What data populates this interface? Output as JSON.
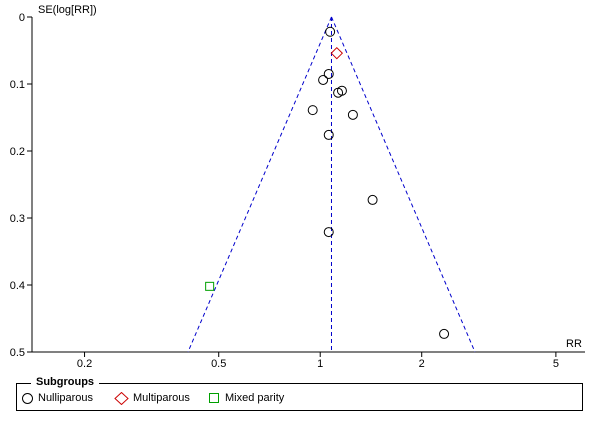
{
  "chart_data": {
    "type": "scatter",
    "title": "",
    "xlabel": "RR",
    "ylabel": "SE(log[RR])",
    "x_scale": "log",
    "xlim": [
      0.1397,
      6.1
    ],
    "x_ticks": [
      0.2,
      0.5,
      1,
      2,
      5
    ],
    "x_tick_labels": [
      "0.2",
      "0.5",
      "1",
      "2",
      "5"
    ],
    "ylim": [
      0,
      0.5
    ],
    "y_inverted": true,
    "y_ticks": [
      0,
      0.1,
      0.2,
      0.3,
      0.4,
      0.5
    ],
    "y_tick_labels": [
      "0",
      "0.1",
      "0.2",
      "0.3",
      "0.4",
      "0.5"
    ],
    "pooled_estimate": 1.08,
    "funnel_z": 1.96,
    "grid": false,
    "legend_position": "bottom",
    "series": [
      {
        "name": "Nulliparous",
        "marker": "circle",
        "color": "#000000",
        "points": [
          {
            "x": 1.07,
            "y": 0.022
          },
          {
            "x": 1.06,
            "y": 0.085
          },
          {
            "x": 1.02,
            "y": 0.094
          },
          {
            "x": 1.16,
            "y": 0.11
          },
          {
            "x": 1.13,
            "y": 0.113
          },
          {
            "x": 0.95,
            "y": 0.139
          },
          {
            "x": 1.25,
            "y": 0.146
          },
          {
            "x": 1.06,
            "y": 0.176
          },
          {
            "x": 1.43,
            "y": 0.273
          },
          {
            "x": 1.06,
            "y": 0.321
          },
          {
            "x": 2.33,
            "y": 0.473
          }
        ]
      },
      {
        "name": "Multiparous",
        "marker": "diamond",
        "color": "#cc0000",
        "points": [
          {
            "x": 1.12,
            "y": 0.054
          }
        ]
      },
      {
        "name": "Mixed parity",
        "marker": "square",
        "color": "#00a000",
        "points": [
          {
            "x": 0.47,
            "y": 0.402
          }
        ]
      }
    ]
  },
  "legend": {
    "title": "Subgroups",
    "items": [
      {
        "label": "Nulliparous",
        "marker": "circle",
        "color": "#000000"
      },
      {
        "label": "Multiparous",
        "marker": "diamond",
        "color": "#cc0000"
      },
      {
        "label": "Mixed parity",
        "marker": "square",
        "color": "#00a000"
      }
    ]
  },
  "colors": {
    "axis": "#000000",
    "funnel": "#0000cc",
    "pooled_line": "#0000cc"
  }
}
